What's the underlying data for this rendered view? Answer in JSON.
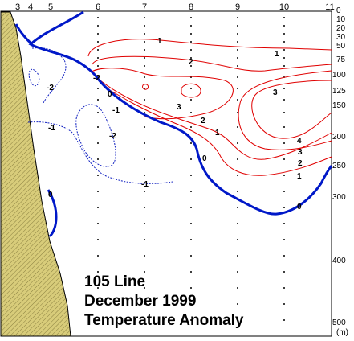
{
  "caption": {
    "line1": "105 Line",
    "line2": "December 1999",
    "line3": "Temperature Anomaly"
  },
  "chart_data": {
    "type": "contour",
    "x_axis_stations": [
      "3",
      "4",
      "5",
      "6",
      "7",
      "8",
      "9",
      "10",
      "11"
    ],
    "y_axis_depths": [
      "0",
      "10",
      "20",
      "30",
      "50",
      "75",
      "100",
      "125",
      "150",
      "200",
      "250",
      "300",
      "400",
      "500"
    ],
    "y_unit": "(m)",
    "ylim": [
      0,
      500
    ],
    "colors": {
      "positive": "#e00000",
      "negative": "#1020c0",
      "zero": "#0018c8",
      "land": "#d8cc7a",
      "land_hatch": "#8a8040"
    },
    "contours": [
      {
        "level": "1",
        "sign": "positive"
      },
      {
        "level": "2",
        "sign": "positive"
      },
      {
        "level": "3",
        "sign": "positive"
      },
      {
        "level": "4",
        "sign": "positive"
      },
      {
        "level": "0",
        "sign": "zero"
      },
      {
        "level": "-1",
        "sign": "negative"
      },
      {
        "level": "-2",
        "sign": "negative"
      }
    ]
  }
}
